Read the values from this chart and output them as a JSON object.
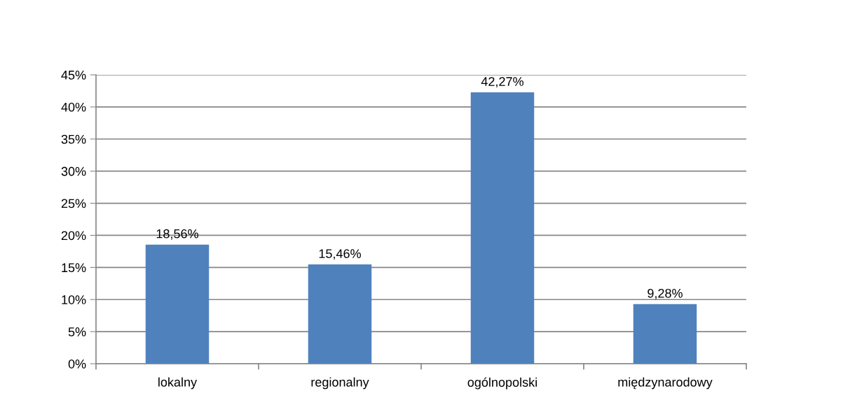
{
  "chart_data": {
    "type": "bar",
    "categories": [
      "lokalny",
      "regionalny",
      "ogólnopolski",
      "międzynarodowy"
    ],
    "values": [
      18.56,
      15.46,
      42.27,
      9.28
    ],
    "value_labels": [
      "18,56%",
      "15,46%",
      "42,27%",
      "9,28%"
    ],
    "color": "#4f81bd",
    "ylim": [
      0,
      45
    ],
    "yticks": [
      {
        "value": 0,
        "label": "0%"
      },
      {
        "value": 5,
        "label": "5%"
      },
      {
        "value": 10,
        "label": "10%"
      },
      {
        "value": 15,
        "label": "15%"
      },
      {
        "value": 20,
        "label": "20%"
      },
      {
        "value": 25,
        "label": "25%"
      },
      {
        "value": 30,
        "label": "30%"
      },
      {
        "value": 35,
        "label": "35%"
      },
      {
        "value": 40,
        "label": "40%"
      },
      {
        "value": 45,
        "label": "45%"
      }
    ],
    "grid": "y",
    "legend": false
  }
}
